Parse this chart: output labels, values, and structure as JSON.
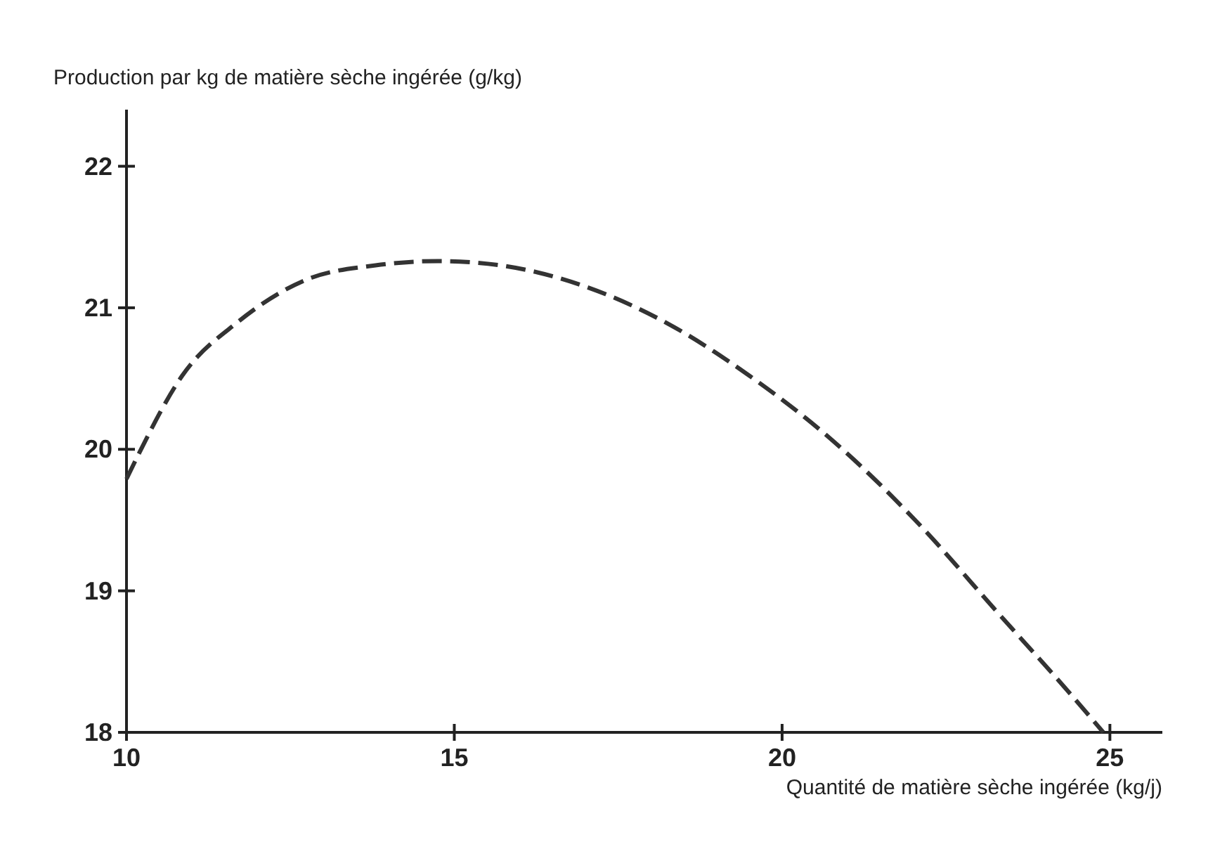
{
  "chart_data": {
    "type": "line",
    "ylabel": "Production par kg de matière sèche ingérée (g/kg)",
    "xlabel": "Quantité de matière sèche ingérée (kg/j)",
    "x": [
      10,
      10.2,
      10.85,
      11.7,
      12.75,
      13.8,
      14.75,
      15.7,
      17,
      18.25,
      19.5,
      20.8,
      22.05,
      23.3,
      24.4,
      24.9
    ],
    "series": [
      {
        "color": "#333333",
        "values": [
          19.79,
          19.98,
          20.52,
          20.9,
          21.2,
          21.3,
          21.33,
          21.3,
          21.15,
          20.89,
          20.52,
          20.05,
          19.49,
          18.84,
          18.27,
          18.0
        ]
      }
    ],
    "xlim": [
      10,
      25.8
    ],
    "ylim": [
      18,
      22.4
    ],
    "xticks": [
      10,
      15,
      20,
      25
    ],
    "yticks": [
      18,
      19,
      20,
      21,
      22
    ],
    "grid": false,
    "line_style": "dashed",
    "marker": "none"
  }
}
